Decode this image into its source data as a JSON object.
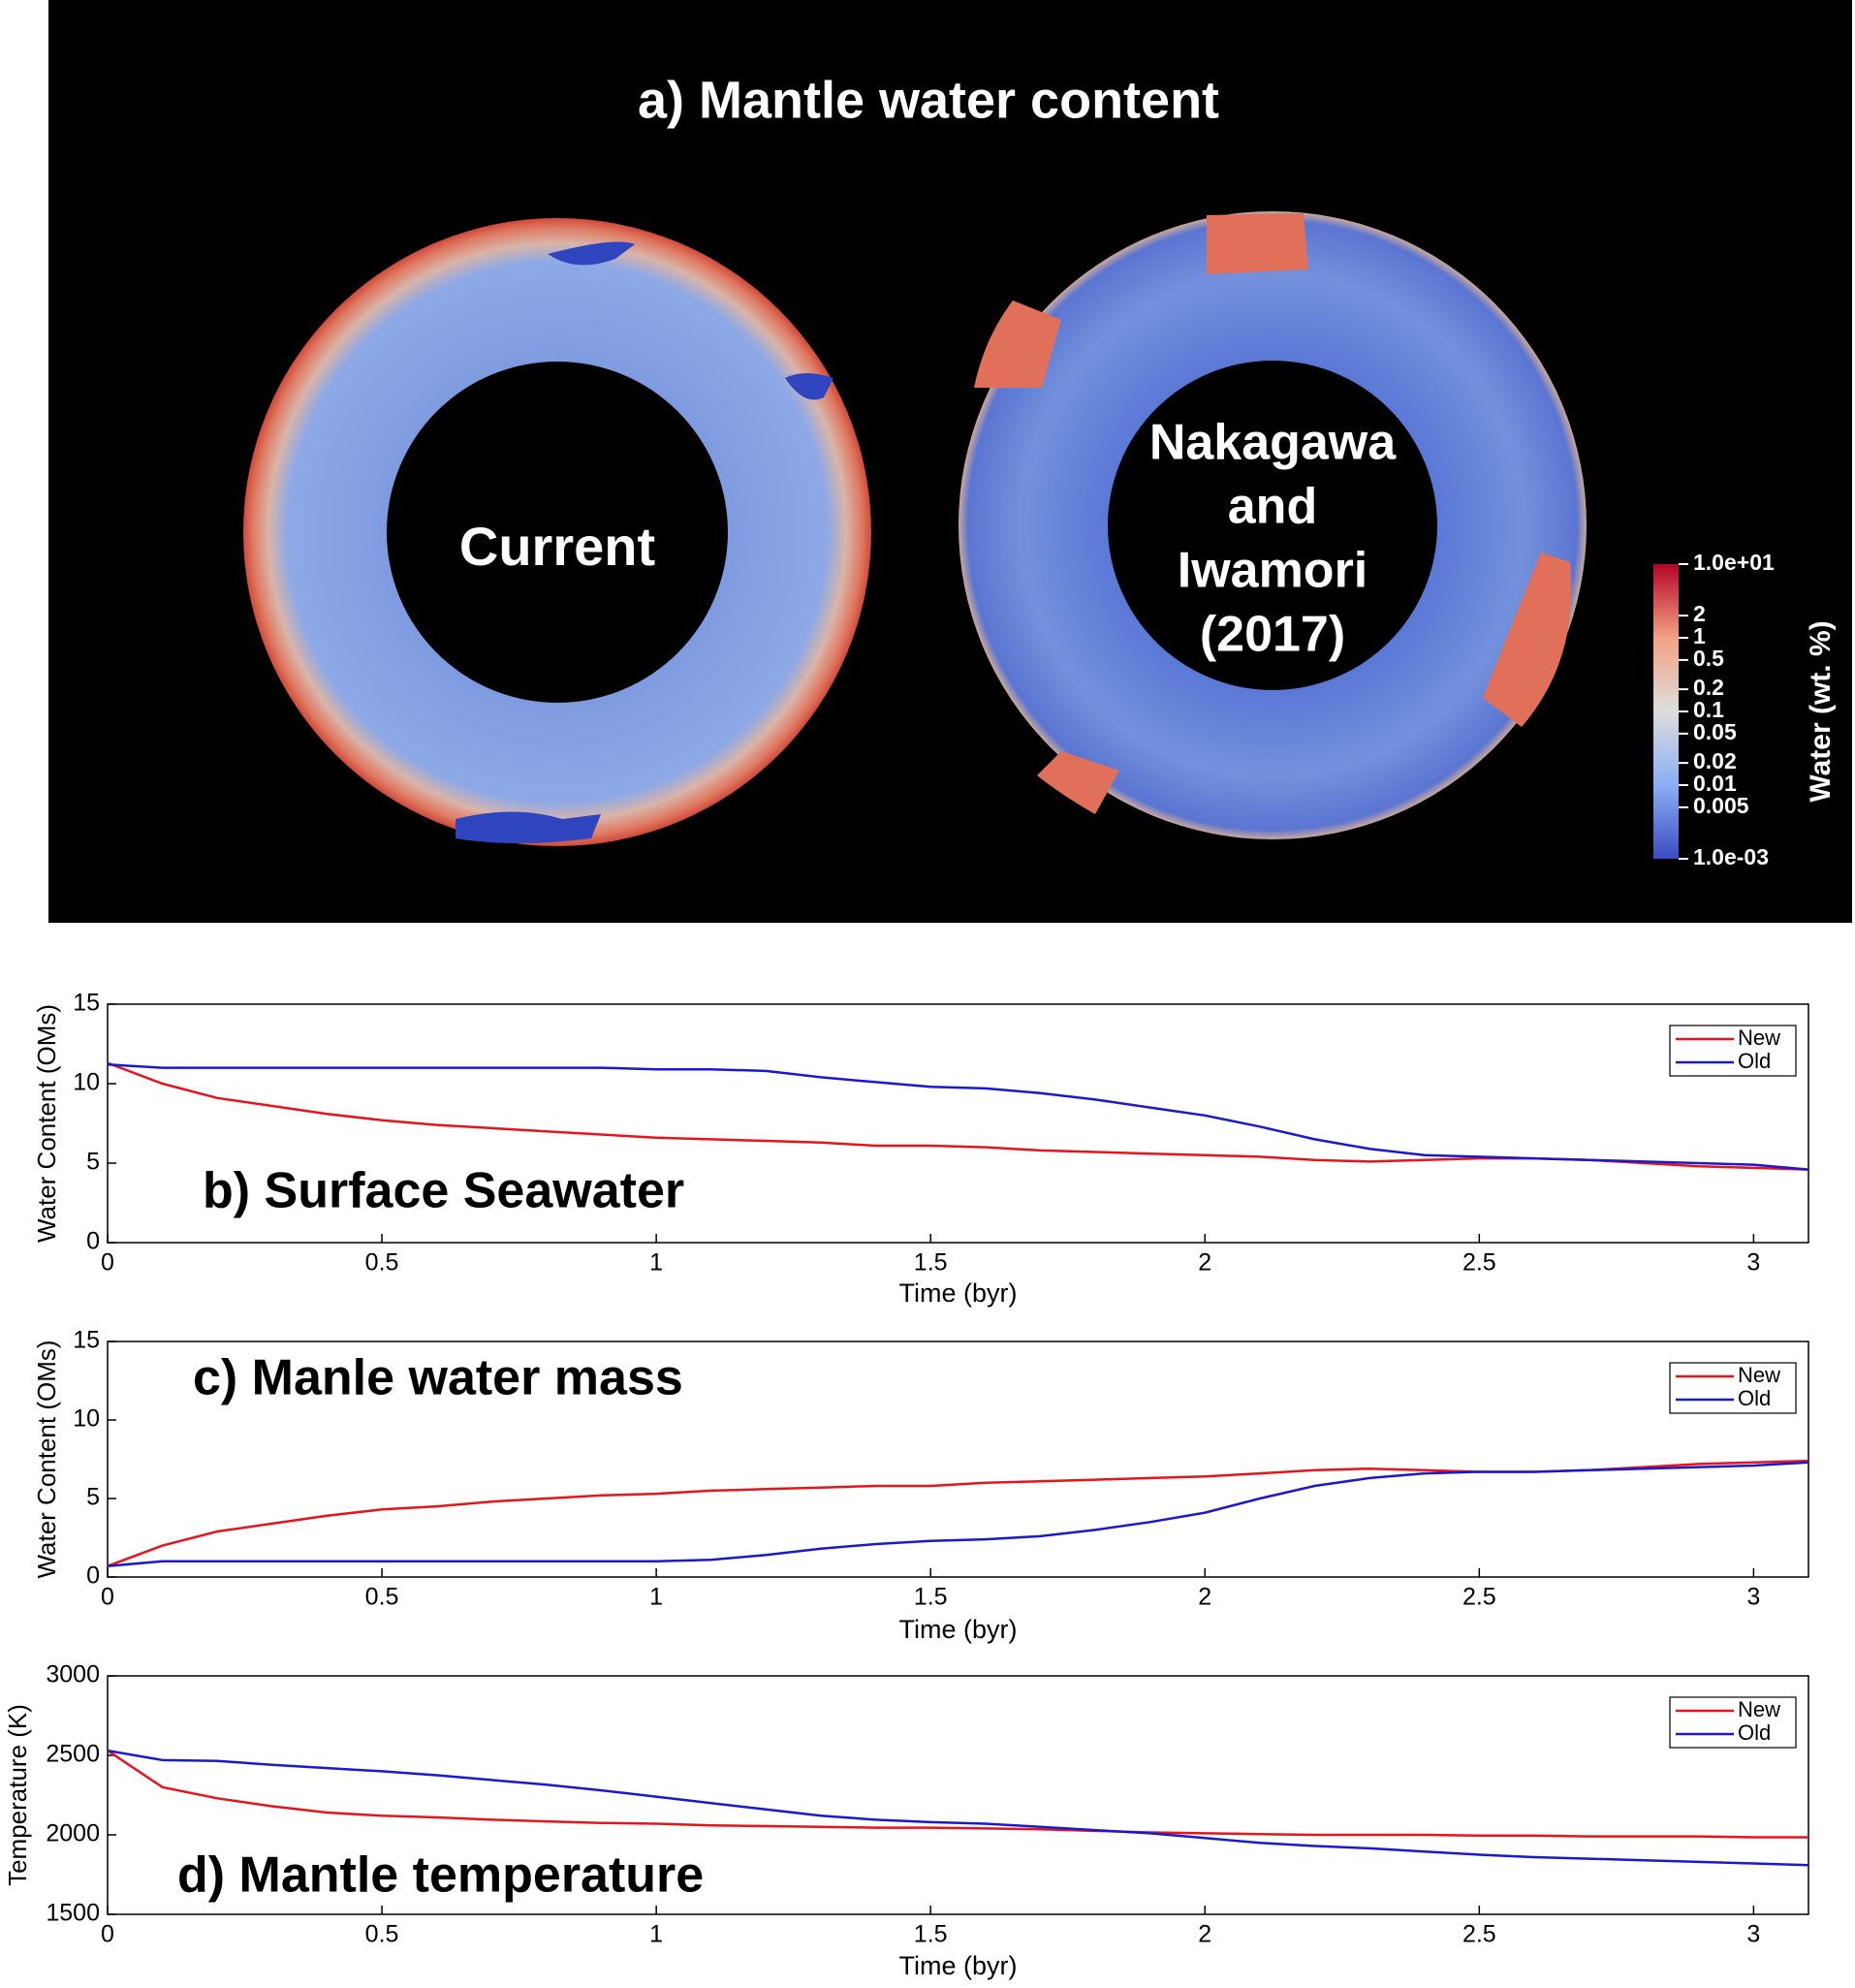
{
  "figure_a": {
    "title": "a) Mantle water content",
    "left_label": [
      "Current"
    ],
    "right_label": [
      "Nakagawa",
      "and",
      "Iwamori",
      "(2017)"
    ],
    "colorbar": {
      "label": "Water (wt. %)",
      "log": true,
      "lim": [
        0.001,
        10
      ],
      "colors": [
        "#3b4cc0",
        "#8caef5",
        "#dddddd",
        "#f3a283",
        "#b40426"
      ],
      "ticks": [
        {
          "value": 10,
          "label": "1.0e+01"
        },
        2,
        1,
        0.5,
        0.2,
        0.1,
        0.05,
        0.02,
        0.01,
        0.005,
        {
          "value": 0.001,
          "label": "1.0e-03"
        }
      ]
    }
  },
  "chart_data": [
    {
      "type": "line",
      "annotation": "b) Surface Seawater",
      "xlabel": "Time (byr)",
      "ylabel": "Water Content (OMs)",
      "xlim": [
        0,
        3.1
      ],
      "ylim": [
        0,
        15
      ],
      "xticks": [
        0,
        0.5,
        1,
        1.5,
        2,
        2.5,
        3
      ],
      "yticks": [
        0,
        5,
        10,
        15
      ],
      "legend": "upper right",
      "x": [
        0,
        0.1,
        0.2,
        0.3,
        0.4,
        0.5,
        0.6,
        0.7,
        0.8,
        0.9,
        1,
        1.1,
        1.2,
        1.3,
        1.4,
        1.5,
        1.6,
        1.7,
        1.8,
        1.9,
        2,
        2.1,
        2.2,
        2.3,
        2.4,
        2.5,
        2.6,
        2.7,
        2.8,
        2.9,
        3,
        3.1
      ],
      "series": [
        {
          "name": "New",
          "color": "#e8141c",
          "values": [
            11.3,
            10,
            9.1,
            8.6,
            8.1,
            7.7,
            7.4,
            7.2,
            7,
            6.8,
            6.6,
            6.5,
            6.4,
            6.3,
            6.1,
            6.1,
            6,
            5.8,
            5.7,
            5.6,
            5.5,
            5.4,
            5.2,
            5.1,
            5.2,
            5.3,
            5.3,
            5.2,
            5,
            4.8,
            4.7,
            4.6
          ]
        },
        {
          "name": "Old",
          "color": "#1a1acc",
          "values": [
            11.2,
            11,
            11,
            11,
            11,
            11,
            11,
            11,
            11,
            11,
            10.9,
            10.9,
            10.8,
            10.4,
            10.1,
            9.8,
            9.7,
            9.4,
            9,
            8.5,
            8,
            7.3,
            6.5,
            5.9,
            5.5,
            5.4,
            5.3,
            5.2,
            5.1,
            5,
            4.9,
            4.6
          ]
        }
      ]
    },
    {
      "type": "line",
      "annotation": "c) Manle water mass",
      "xlabel": "Time (byr)",
      "ylabel": "Water Content (OMs)",
      "xlim": [
        0,
        3.1
      ],
      "ylim": [
        0,
        15
      ],
      "xticks": [
        0,
        0.5,
        1,
        1.5,
        2,
        2.5,
        3
      ],
      "yticks": [
        0,
        5,
        10,
        15
      ],
      "legend": "upper right",
      "x": [
        0,
        0.1,
        0.2,
        0.3,
        0.4,
        0.5,
        0.6,
        0.7,
        0.8,
        0.9,
        1,
        1.1,
        1.2,
        1.3,
        1.4,
        1.5,
        1.6,
        1.7,
        1.8,
        1.9,
        2,
        2.1,
        2.2,
        2.3,
        2.4,
        2.5,
        2.6,
        2.7,
        2.8,
        2.9,
        3,
        3.1
      ],
      "series": [
        {
          "name": "New",
          "color": "#e8141c",
          "values": [
            0.7,
            2,
            2.9,
            3.4,
            3.9,
            4.3,
            4.5,
            4.8,
            5,
            5.2,
            5.3,
            5.5,
            5.6,
            5.7,
            5.8,
            5.8,
            6,
            6.1,
            6.2,
            6.3,
            6.4,
            6.6,
            6.8,
            6.9,
            6.8,
            6.7,
            6.7,
            6.8,
            7,
            7.2,
            7.3,
            7.4
          ]
        },
        {
          "name": "Old",
          "color": "#1a1acc",
          "values": [
            0.7,
            1,
            1,
            1,
            1,
            1,
            1,
            1,
            1,
            1,
            1,
            1.1,
            1.4,
            1.8,
            2.1,
            2.3,
            2.4,
            2.6,
            3,
            3.5,
            4.1,
            5,
            5.8,
            6.3,
            6.6,
            6.7,
            6.7,
            6.8,
            6.9,
            7,
            7.1,
            7.3
          ]
        }
      ]
    },
    {
      "type": "line",
      "annotation": "d) Mantle temperature",
      "xlabel": "Time (byr)",
      "ylabel": "Temperature (K)",
      "xlim": [
        0,
        3.1
      ],
      "ylim": [
        1500,
        3000
      ],
      "xticks": [
        0,
        0.5,
        1,
        1.5,
        2,
        2.5,
        3
      ],
      "yticks": [
        1500,
        2000,
        2500,
        3000
      ],
      "legend": "upper right",
      "x": [
        0,
        0.1,
        0.2,
        0.3,
        0.4,
        0.5,
        0.6,
        0.7,
        0.8,
        0.9,
        1,
        1.1,
        1.2,
        1.3,
        1.4,
        1.5,
        1.6,
        1.7,
        1.8,
        1.9,
        2,
        2.1,
        2.2,
        2.3,
        2.4,
        2.5,
        2.6,
        2.7,
        2.8,
        2.9,
        3,
        3.1
      ],
      "series": [
        {
          "name": "New",
          "color": "#e8141c",
          "values": [
            2530,
            2300,
            2230,
            2180,
            2140,
            2120,
            2110,
            2095,
            2085,
            2075,
            2070,
            2060,
            2055,
            2050,
            2045,
            2045,
            2040,
            2035,
            2025,
            2015,
            2010,
            2005,
            2000,
            2000,
            2000,
            1995,
            1995,
            1990,
            1990,
            1990,
            1985,
            1985
          ]
        },
        {
          "name": "Old",
          "color": "#1a1acc",
          "values": [
            2530,
            2470,
            2465,
            2440,
            2420,
            2400,
            2375,
            2345,
            2315,
            2280,
            2240,
            2200,
            2160,
            2120,
            2095,
            2080,
            2070,
            2050,
            2030,
            2010,
            1980,
            1950,
            1930,
            1915,
            1895,
            1875,
            1860,
            1850,
            1840,
            1830,
            1820,
            1810
          ]
        }
      ]
    }
  ]
}
